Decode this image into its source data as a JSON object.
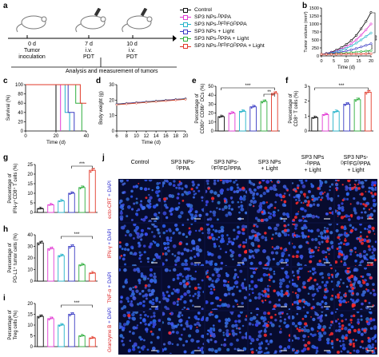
{
  "panels": {
    "a": "a",
    "b": "b",
    "c": "c",
    "d": "d",
    "e": "e",
    "f": "f",
    "g": "g",
    "h": "h",
    "i": "i",
    "j": "j"
  },
  "timeline": {
    "day0": "0 d",
    "day0_sub1": "Tumor",
    "day0_sub2": "inoculation",
    "day7": "7 d",
    "day7_sub1": "i.v.",
    "day7_sub2": "PDT",
    "day10": "10 d",
    "day10_sub1": "i.v.",
    "day10_sub2": "PDT",
    "analysis": "Analysis and measurement of tumors"
  },
  "legend": [
    {
      "label": "Control",
      "color": "#111111"
    },
    {
      "label": "SP3 NPs-ᴰPPA",
      "color": "#e23ad4"
    },
    {
      "label": "SP3 NPs-ᴰFᴰFGᴰPPA",
      "color": "#24b3c9"
    },
    {
      "label": "SP3 NPs + Light",
      "color": "#3a3cc4"
    },
    {
      "label": "SP3 NPs-ᴰPPA + Light",
      "color": "#2fae3e"
    },
    {
      "label": "SP3 NPs-ᴰFᴰFGᴰPPA + Light",
      "color": "#e23a2a"
    }
  ],
  "sig": {
    "b1": "***",
    "b2": "***",
    "b3": "**",
    "e1": "***",
    "e2": "**",
    "f1": "***",
    "g1": "***",
    "h1": "***",
    "i1": "***"
  },
  "chart_data": [
    {
      "id": "b",
      "type": "line",
      "ylabel": "Tumor volume (mm³)",
      "xlabel": "Time (d)",
      "xlim": [
        0,
        20
      ],
      "ylim": [
        0,
        1500
      ],
      "xticks": [
        "0",
        "5",
        "10",
        "15",
        "20"
      ],
      "yticks": [
        "0",
        "250",
        "500",
        "750",
        "1000",
        "1250",
        "1500"
      ],
      "x": [
        0,
        2,
        4,
        6,
        8,
        10,
        12,
        14,
        16,
        18,
        20
      ],
      "series": [
        {
          "values": [
            50,
            80,
            120,
            180,
            260,
            360,
            480,
            640,
            850,
            1080,
            1360
          ]
        },
        {
          "values": [
            50,
            75,
            105,
            150,
            210,
            290,
            380,
            500,
            650,
            820,
            1000
          ]
        },
        {
          "values": [
            50,
            70,
            95,
            130,
            180,
            240,
            310,
            400,
            500,
            610,
            720
          ]
        },
        {
          "values": [
            50,
            65,
            80,
            100,
            125,
            155,
            190,
            230,
            280,
            330,
            380
          ]
        },
        {
          "values": [
            50,
            55,
            62,
            70,
            80,
            92,
            106,
            120,
            135,
            150,
            170
          ]
        },
        {
          "values": [
            50,
            50,
            52,
            54,
            56,
            58,
            60,
            62,
            64,
            66,
            70
          ]
        }
      ]
    },
    {
      "id": "c",
      "type": "line",
      "ylabel": "Survival (%)",
      "xlabel": "Time (d)",
      "xlim": [
        0,
        40
      ],
      "ylim": [
        0,
        100
      ],
      "xticks": [
        "0",
        "20",
        "40"
      ],
      "yticks": [
        "0",
        "20",
        "40",
        "60",
        "80",
        "100"
      ],
      "series": [
        {
          "steps": [
            [
              0,
              100
            ],
            [
              20,
              100
            ],
            [
              20,
              0
            ]
          ]
        },
        {
          "steps": [
            [
              0,
              100
            ],
            [
              23,
              100
            ],
            [
              23,
              0
            ]
          ]
        },
        {
          "steps": [
            [
              0,
              100
            ],
            [
              26,
              100
            ],
            [
              26,
              40
            ],
            [
              29,
              40
            ],
            [
              29,
              0
            ]
          ]
        },
        {
          "steps": [
            [
              0,
              100
            ],
            [
              28,
              100
            ],
            [
              28,
              40
            ],
            [
              32,
              40
            ],
            [
              32,
              0
            ]
          ]
        },
        {
          "steps": [
            [
              0,
              100
            ],
            [
              33,
              100
            ],
            [
              33,
              60
            ],
            [
              37,
              60
            ],
            [
              37,
              0
            ]
          ]
        },
        {
          "steps": [
            [
              0,
              100
            ],
            [
              36,
              100
            ],
            [
              36,
              60
            ],
            [
              40,
              60
            ]
          ]
        }
      ]
    },
    {
      "id": "d",
      "type": "line",
      "ylabel": "Body weight (g)",
      "xlabel": "Time (d)",
      "xlim": [
        6,
        20
      ],
      "ylim": [
        0,
        30
      ],
      "xticks": [
        "6",
        "8",
        "10",
        "12",
        "14",
        "16",
        "18",
        "20"
      ],
      "yticks": [
        "0",
        "10",
        "20",
        "30"
      ],
      "x": [
        6,
        8,
        10,
        12,
        14,
        16,
        18,
        20
      ],
      "series": [
        {
          "values": [
            17.5,
            18.0,
            18.5,
            19.0,
            19.5,
            20.0,
            20.5,
            21.0
          ]
        },
        {
          "values": [
            17.4,
            17.9,
            18.4,
            18.9,
            19.4,
            19.9,
            20.4,
            20.9
          ]
        },
        {
          "values": [
            17.3,
            17.8,
            18.3,
            18.8,
            19.3,
            19.8,
            20.3,
            20.8
          ]
        },
        {
          "values": [
            17.2,
            17.7,
            18.2,
            18.7,
            19.2,
            19.7,
            20.2,
            20.7
          ]
        },
        {
          "values": [
            17.1,
            17.6,
            18.1,
            18.6,
            19.1,
            19.6,
            20.1,
            20.6
          ]
        },
        {
          "values": [
            17.0,
            17.5,
            18.0,
            18.5,
            19.0,
            19.5,
            20.0,
            20.5
          ]
        }
      ]
    },
    {
      "id": "e",
      "type": "bar",
      "ylabel": "Percentage of CD80⁺ CD86⁺ DCs (%)",
      "ylim": [
        0,
        50
      ],
      "yticks": [
        "0",
        "10",
        "20",
        "30",
        "40",
        "50"
      ],
      "values": [
        16,
        20,
        22,
        27,
        33,
        42
      ]
    },
    {
      "id": "f",
      "type": "bar",
      "ylabel": "Percentage of CD8⁺ T cells (%)",
      "ylim": [
        0,
        3
      ],
      "yticks": [
        "0",
        "1",
        "2",
        "3"
      ],
      "values": [
        0.9,
        1.1,
        1.3,
        1.8,
        2.1,
        2.6
      ]
    },
    {
      "id": "g",
      "type": "bar",
      "ylabel": "Percentage of IFN-γ⁺CD8⁺ T cells (%)",
      "ylim": [
        0,
        25
      ],
      "yticks": [
        "0",
        "5",
        "10",
        "15",
        "20",
        "25"
      ],
      "values": [
        2,
        4,
        6,
        10,
        13,
        22
      ]
    },
    {
      "id": "h",
      "type": "bar",
      "ylabel": "Percentage of PD-L1⁺ tumor cells (%)",
      "ylim": [
        0,
        40
      ],
      "yticks": [
        "0",
        "10",
        "20",
        "30",
        "40"
      ],
      "values": [
        33,
        28,
        22,
        30,
        14,
        7
      ]
    },
    {
      "id": "i",
      "type": "bar",
      "ylabel": "Percentage of Treg cells (%)",
      "ylim": [
        0,
        20
      ],
      "yticks": [
        "0",
        "5",
        "10",
        "15",
        "20"
      ],
      "values": [
        14,
        13,
        10,
        15,
        5,
        4
      ]
    }
  ],
  "micro": {
    "columns": [
      "Control",
      "SP3 NPs-\nᴰPPA",
      "SP3 NPs-\nᴰFᴰFGᴰPPA",
      "SP3 NPs\n+ Light",
      "SP3 NPs\n-ᴰPPA\n+ Light",
      "SP3 NPs-\nᴰFᴰFGᴰPPA\n+ Light"
    ],
    "rows": [
      "ecto-CRT + DAPI",
      "IFN-γ + DAPI",
      "TNF-α + DAPI",
      "Granzyme B + DAPI"
    ],
    "red_level": [
      [
        0.05,
        0.1,
        0.15,
        0.35,
        0.55,
        0.8
      ],
      [
        0.05,
        0.1,
        0.15,
        0.3,
        0.5,
        0.75
      ],
      [
        0.05,
        0.1,
        0.15,
        0.3,
        0.5,
        0.7
      ],
      [
        0.05,
        0.08,
        0.12,
        0.25,
        0.45,
        0.7
      ]
    ]
  }
}
